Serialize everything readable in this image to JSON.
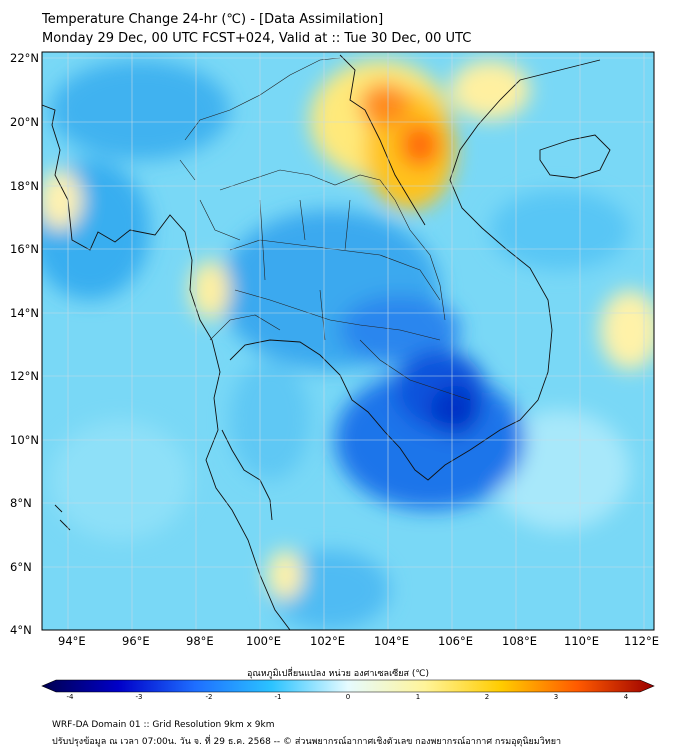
{
  "title": {
    "line1": "Temperature Change 24-hr (℃) - [Data Assimilation]",
    "line2": "Monday 29 Dec, 00 UTC FCST+024, Valid at :: Tue 30 Dec, 00 UTC"
  },
  "map": {
    "lon_labels": [
      "94°E",
      "96°E",
      "98°E",
      "100°E",
      "102°E",
      "104°E",
      "106°E",
      "108°E",
      "110°E",
      "112°E"
    ],
    "lat_labels": [
      "22°N",
      "20°N",
      "18°N",
      "16°N",
      "14°N",
      "12°N",
      "10°N",
      "8°N",
      "6°N",
      "4°N"
    ],
    "lon_range": [
      93,
      112.5
    ],
    "lat_range": [
      4,
      22.2
    ],
    "grid": true,
    "features": [
      {
        "name": "warm anomaly north Vietnam / Laos",
        "lon": 105,
        "lat": 19.5,
        "value": 2.5
      },
      {
        "name": "cold anomaly Cambodia",
        "lon": 105.5,
        "lat": 11,
        "value": -3
      }
    ]
  },
  "colorbar": {
    "title": "อุณหภูมิเปลี่ยนแปลง หน่วย องศาเซลเซียส (℃)",
    "ticks": [
      "-4",
      "-3",
      "-2",
      "-1",
      "0",
      "1",
      "2",
      "3",
      "4"
    ],
    "colors": [
      "#00004f",
      "#0000c8",
      "#1e6eff",
      "#2bc3ff",
      "#e6fbff",
      "#fff49a",
      "#ffcc00",
      "#ff5a00",
      "#9b0000",
      "#4a0000"
    ]
  },
  "footer": {
    "line1": "WRF-DA Domain 01 :: Grid Resolution 9km x 9km",
    "line2": "ปรับปรุงข้อมูล ณ เวลา 07:00น. วัน จ. ที่ 29 ธ.ค. 2568 -- © ส่วนพยากรณ์อากาศเชิงตัวเลข กองพยากรณ์อากาศ กรมอุตุนิยมวิทยา"
  }
}
